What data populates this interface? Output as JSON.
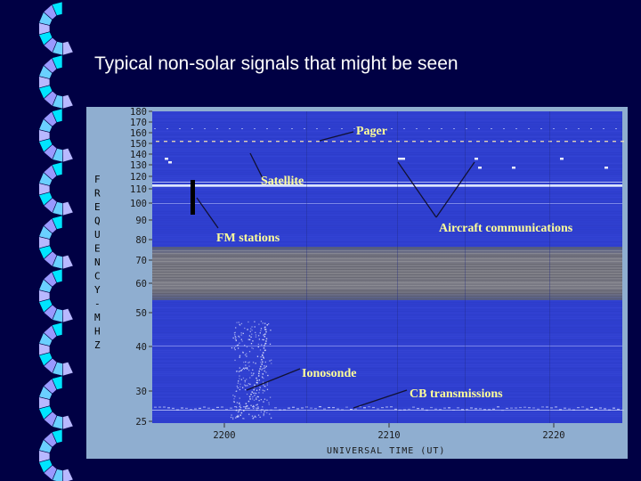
{
  "slide": {
    "title": "Typical non-solar signals that might be seen"
  },
  "spectrogram": {
    "y_axis_letters": [
      "F",
      "R",
      "E",
      "Q",
      "U",
      "E",
      "N",
      "C",
      "Y",
      "-",
      "M",
      "H",
      "Z"
    ],
    "y_ticks": [
      {
        "label": "180",
        "value": 180
      },
      {
        "label": "170",
        "value": 170
      },
      {
        "label": "160",
        "value": 160
      },
      {
        "label": "150",
        "value": 150
      },
      {
        "label": "140",
        "value": 140
      },
      {
        "label": "130",
        "value": 130
      },
      {
        "label": "120",
        "value": 120
      },
      {
        "label": "110",
        "value": 110
      },
      {
        "label": "100",
        "value": 100
      },
      {
        "label": "90",
        "value": 90
      },
      {
        "label": "80",
        "value": 80
      },
      {
        "label": "70",
        "value": 70
      },
      {
        "label": "60",
        "value": 60
      },
      {
        "label": "50",
        "value": 50
      },
      {
        "label": "40",
        "value": 40
      },
      {
        "label": "30",
        "value": 30
      },
      {
        "label": "25",
        "value": 25
      }
    ],
    "x_ticks": [
      {
        "label": "2200",
        "value": 2200
      },
      {
        "label": "2210",
        "value": 2210
      },
      {
        "label": "2220",
        "value": 2220
      }
    ],
    "x_axis_title": "UNIVERSAL TIME (UT)",
    "annotations": {
      "pager": "Pager",
      "satellite": "Satellite",
      "aircraft": "Aircraft communications",
      "fm": "FM stations",
      "ionosonde": "Ionosonde",
      "cb": "CB transmissions"
    },
    "colors": {
      "plot_blue": "#2f3fd0",
      "plot_gray": "#6b6b78",
      "axis_bg": "#8faed0",
      "label": "#ffff99"
    }
  }
}
